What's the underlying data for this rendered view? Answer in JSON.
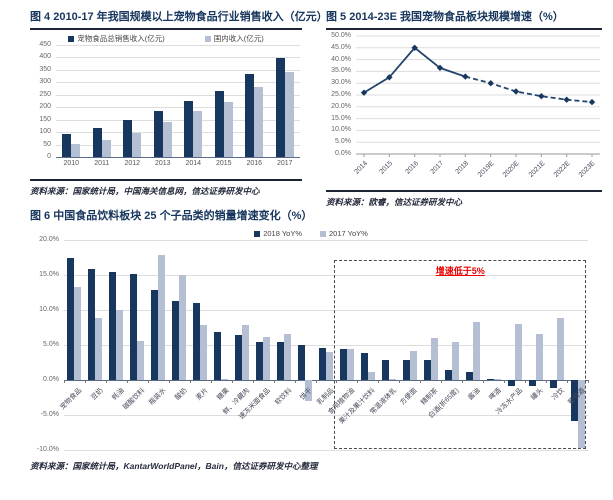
{
  "colors": {
    "series_dark": "#17375E",
    "series_light": "#B5BFD3",
    "line": "#24456E",
    "title_navy": "#17365D",
    "annotation_red": "#E80000",
    "grid_gray": "#DDDDDD",
    "axis_gray": "#999999"
  },
  "chart_data": [
    {
      "id": "fig4",
      "type": "bar",
      "title": "图 4 2010-17 年我国规模以上宠物食品行业销售收入（亿元）",
      "source": "资料来源：国家统计局，中国海关信息网，信达证券研发中心",
      "categories": [
        "2010",
        "2011",
        "2012",
        "2013",
        "2014",
        "2015",
        "2016",
        "2017"
      ],
      "series": [
        {
          "name": "宠物食品总销售收入(亿元)",
          "values": [
            93,
            115,
            148,
            185,
            225,
            265,
            333,
            397
          ]
        },
        {
          "name": "国内收入(亿元)",
          "values": [
            53,
            68,
            98,
            140,
            183,
            220,
            283,
            340
          ]
        }
      ],
      "ylim": [
        0,
        450
      ],
      "ystep": 50,
      "yticks": [
        "450",
        "400",
        "350",
        "300",
        "250",
        "200",
        "150",
        "100",
        "50",
        "0"
      ],
      "grid": "on",
      "legend_position": "top"
    },
    {
      "id": "fig5",
      "type": "line",
      "title": "图 5 2014-23E 我国宠物食品板块规模增速（%）",
      "source": "资料来源：欧睿，信达证券研发中心",
      "x": [
        "2014",
        "2015",
        "2016",
        "2017",
        "2018",
        "2019E",
        "2020E",
        "2021E",
        "2022E",
        "2023E"
      ],
      "values": [
        26.0,
        32.5,
        45.0,
        36.5,
        32.8,
        30.0,
        26.5,
        24.5,
        23.0,
        22.0
      ],
      "solid_until_index": 4,
      "marker": "diamond",
      "ylim": [
        0,
        50
      ],
      "ystep": 5,
      "yticks": [
        "50.0%",
        "45.0%",
        "40.0%",
        "35.0%",
        "30.0%",
        "25.0%",
        "20.0%",
        "15.0%",
        "10.0%",
        "5.0%",
        "0.0%"
      ],
      "grid": "on",
      "legend_position": "none"
    },
    {
      "id": "fig6",
      "type": "bar",
      "title": "图 6 中国食品饮料板块 25 个子品类的销量增速变化（%）",
      "source": "资料来源：国家统计局，KantarWorldPanel，Bain，信达证券研发中心整理",
      "annotation": "增速低于5%",
      "annotation_box": {
        "from_category_index": 13,
        "top_value": 17.2,
        "bottom_value": -10
      },
      "categories": [
        "宠物食品",
        "豆奶",
        "蚝油",
        "碳酸饮料",
        "瓶装水",
        "酸奶",
        "麦片",
        "糖果",
        "鲜、冷藏肉",
        "速冻米面食品",
        "软饮料",
        "饼干",
        "乳制品",
        "食用植物油",
        "果汁及果汁饮料",
        "常温液体乳",
        "方便面",
        "精制茶",
        "白酒(折65度)",
        "酱油",
        "啤酒",
        "冷冻水产品",
        "罐头",
        "冷饮",
        "葡萄酒"
      ],
      "series": [
        {
          "name": "2018 YoY%",
          "values": [
            17.4,
            15.8,
            15.5,
            15.1,
            12.9,
            11.3,
            11.0,
            6.9,
            6.5,
            5.4,
            5.4,
            5.0,
            4.6,
            4.4,
            3.8,
            2.8,
            2.8,
            2.8,
            1.4,
            1.2,
            0.2,
            -0.8,
            -0.9,
            -1.2,
            -5.8
          ]
        },
        {
          "name": "2017 YoY%",
          "values": [
            13.3,
            8.9,
            10.0,
            5.6,
            17.9,
            15.0,
            7.8,
            0.2,
            7.9,
            6.2,
            6.6,
            -3.0,
            4.0,
            4.4,
            1.1,
            0.1,
            4.2,
            6.0,
            5.5,
            8.3,
            0.2,
            8.0,
            6.6,
            8.8,
            -9.7
          ]
        }
      ],
      "ylim": [
        -10,
        20
      ],
      "ystep": 5,
      "yticks": [
        "20.0%",
        "15.0%",
        "10.0%",
        "5.0%",
        "0.0%",
        "-5.0%",
        "-10.0%"
      ],
      "grid": "on",
      "legend_position": "top"
    }
  ]
}
